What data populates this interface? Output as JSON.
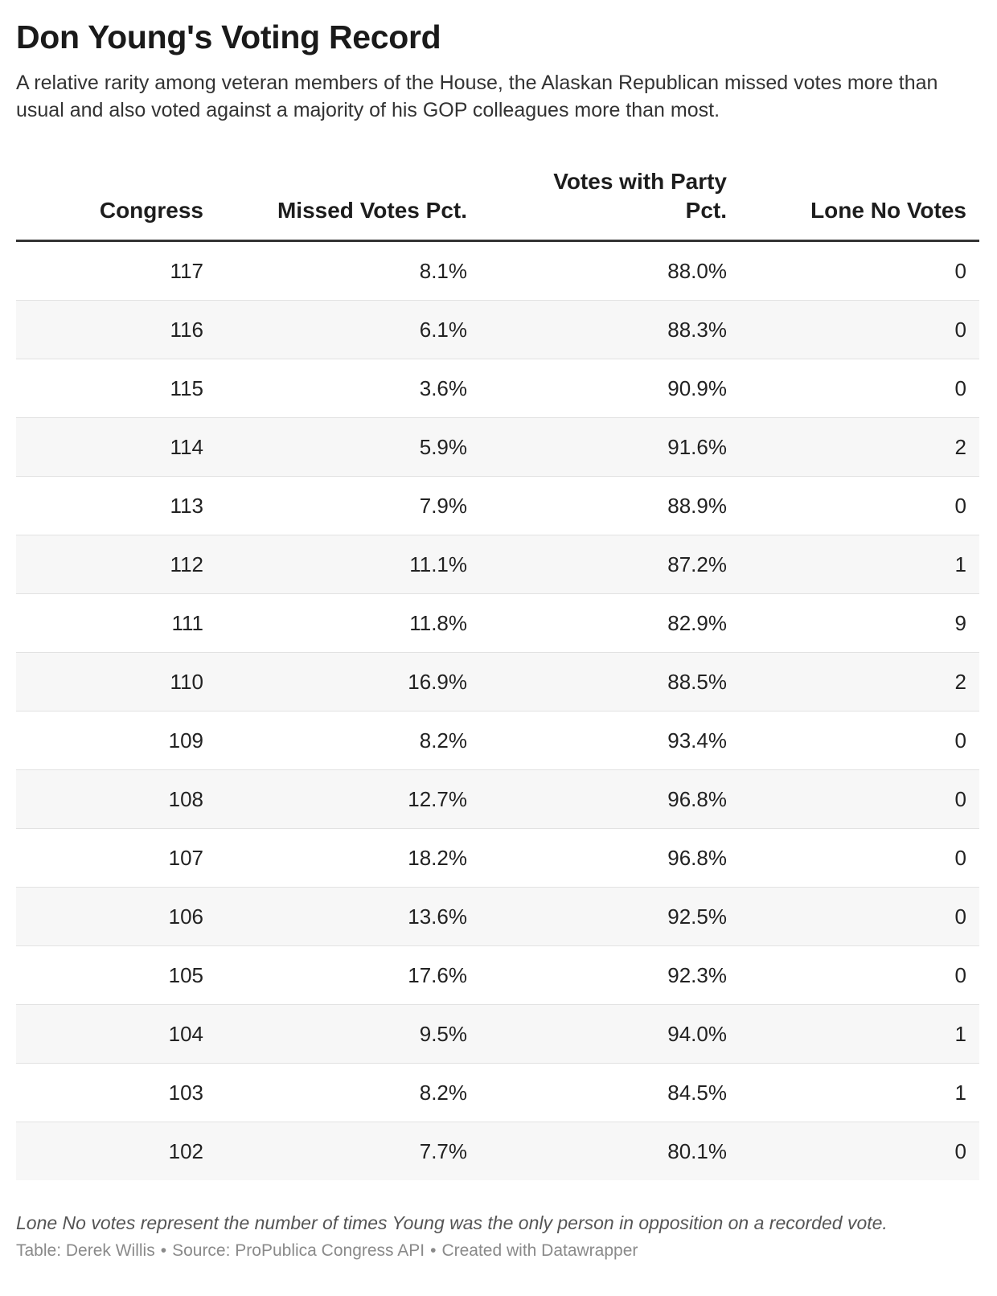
{
  "chart_data": {
    "type": "table",
    "title": "Don Young's Voting Record",
    "subtitle": "A relative rarity among veteran members of the House, the Alaskan Republican missed votes more than usual and also voted against a majority of his GOP colleagues more than most.",
    "columns": [
      "Congress",
      "Missed Votes Pct.",
      "Votes with Party Pct.",
      "Lone No Votes"
    ],
    "rows": [
      [
        "117",
        "8.1%",
        "88.0%",
        "0"
      ],
      [
        "116",
        "6.1%",
        "88.3%",
        "0"
      ],
      [
        "115",
        "3.6%",
        "90.9%",
        "0"
      ],
      [
        "114",
        "5.9%",
        "91.6%",
        "2"
      ],
      [
        "113",
        "7.9%",
        "88.9%",
        "0"
      ],
      [
        "112",
        "11.1%",
        "87.2%",
        "1"
      ],
      [
        "111",
        "11.8%",
        "82.9%",
        "9"
      ],
      [
        "110",
        "16.9%",
        "88.5%",
        "2"
      ],
      [
        "109",
        "8.2%",
        "93.4%",
        "0"
      ],
      [
        "108",
        "12.7%",
        "96.8%",
        "0"
      ],
      [
        "107",
        "18.2%",
        "96.8%",
        "0"
      ],
      [
        "106",
        "13.6%",
        "92.5%",
        "0"
      ],
      [
        "105",
        "17.6%",
        "92.3%",
        "0"
      ],
      [
        "104",
        "9.5%",
        "94.0%",
        "1"
      ],
      [
        "103",
        "8.2%",
        "84.5%",
        "1"
      ],
      [
        "102",
        "7.7%",
        "80.1%",
        "0"
      ]
    ],
    "notes": "Lone No votes represent the number of times Young was the only person in opposition on a recorded vote.",
    "credits": [
      "Table: Derek Willis",
      "Source: ProPublica Congress API",
      "Created with Datawrapper"
    ],
    "credit_separator": "•"
  }
}
